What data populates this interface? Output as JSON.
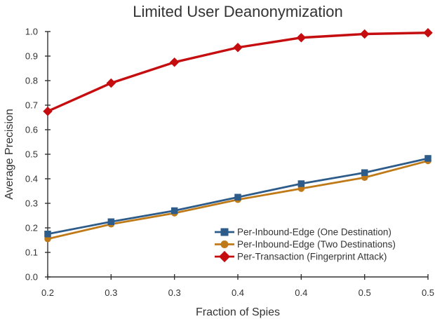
{
  "figure": {
    "background": "#ffffff",
    "text_color": "#333333"
  },
  "chart_data": {
    "type": "line",
    "title": "Limited User Deanonymization",
    "xlabel": "Fraction of Spies",
    "ylabel": "Average Precision",
    "xlim": [
      0.2,
      0.5
    ],
    "ylim": [
      0.0,
      1.0
    ],
    "grid": false,
    "legend": {
      "position": "lower-center",
      "frame": false
    },
    "x": [
      0.2,
      0.25,
      0.3,
      0.35,
      0.4,
      0.45,
      0.5
    ],
    "xtick_labels": [
      "0.2",
      "0.3",
      "0.3",
      "0.4",
      "0.4",
      "0.5",
      "0.5"
    ],
    "ytick_values": [
      0.0,
      0.1,
      0.2,
      0.3,
      0.4,
      0.5,
      0.6,
      0.7,
      0.8,
      0.9,
      1.0
    ],
    "ytick_labels": [
      "0.0",
      "0.1",
      "0.2",
      "0.3",
      "0.4",
      "0.5",
      "0.6",
      "0.7",
      "0.8",
      "0.9",
      "1.0"
    ],
    "series": [
      {
        "name": "Per-Inbound-Edge (One Destination)",
        "color": "#2e5c8a",
        "marker": "square",
        "values": [
          0.175,
          0.225,
          0.27,
          0.325,
          0.38,
          0.425,
          0.483
        ]
      },
      {
        "name": "Per-Inbound-Edge (Two Destinations)",
        "color": "#bf7a17",
        "marker": "circle",
        "values": [
          0.155,
          0.215,
          0.26,
          0.315,
          0.36,
          0.405,
          0.473
        ]
      },
      {
        "name": "Per-Transaction (Fingerprint Attack)",
        "color": "#c50d10",
        "marker": "diamond",
        "values": [
          0.675,
          0.79,
          0.875,
          0.935,
          0.975,
          0.99,
          0.995
        ]
      }
    ]
  }
}
